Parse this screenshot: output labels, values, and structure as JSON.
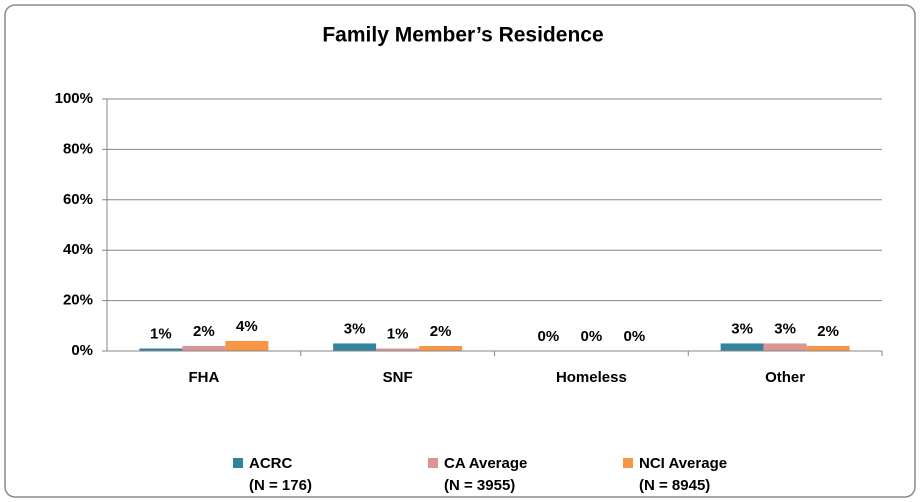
{
  "chart_data": {
    "type": "bar",
    "title": "Family Member’s Residence",
    "categories": [
      "FHA",
      "SNF",
      "Homeless",
      "Other"
    ],
    "series": [
      {
        "name": "ACRC",
        "note": "(N = 176)",
        "color": "#31849b",
        "values": [
          1,
          3,
          0,
          3
        ],
        "value_labels": [
          "1%",
          "3%",
          "0%",
          "3%"
        ]
      },
      {
        "name": "CA Average",
        "note": "(N = 3955)",
        "color": "#d99694",
        "values": [
          2,
          1,
          0,
          3
        ],
        "value_labels": [
          "2%",
          "1%",
          "0%",
          "3%"
        ]
      },
      {
        "name": "NCI Average",
        "note": "(N = 8945)",
        "color": "#f79646",
        "values": [
          4,
          2,
          0,
          2
        ],
        "value_labels": [
          "4%",
          "2%",
          "0%",
          "2%"
        ]
      }
    ],
    "ylim": [
      0,
      100
    ],
    "yticks": [
      {
        "value": 0,
        "label": "0%"
      },
      {
        "value": 20,
        "label": "20%"
      },
      {
        "value": 40,
        "label": "40%"
      },
      {
        "value": 60,
        "label": "60%"
      },
      {
        "value": 80,
        "label": "80%"
      },
      {
        "value": 100,
        "label": "100%"
      }
    ],
    "grid": true,
    "legend": "bottom"
  }
}
